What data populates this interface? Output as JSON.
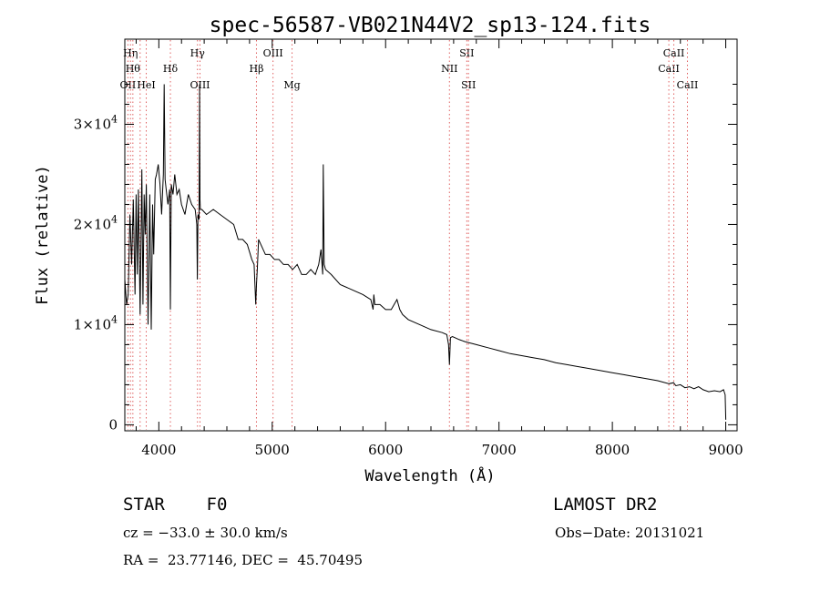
{
  "chart_data": {
    "type": "line",
    "title": "spec-56587-VB021N44V2_sp13-124.fits",
    "xlabel": "Wavelength (Å)",
    "ylabel": "Flux (relative)",
    "xlim": [
      3700,
      9100
    ],
    "ylim": [
      -600,
      38500
    ],
    "x_ticks": [
      {
        "value": 4000,
        "label": "4000"
      },
      {
        "value": 5000,
        "label": "5000"
      },
      {
        "value": 6000,
        "label": "6000"
      },
      {
        "value": 7000,
        "label": "7000"
      },
      {
        "value": 8000,
        "label": "8000"
      },
      {
        "value": 9000,
        "label": "9000"
      }
    ],
    "y_ticks": [
      {
        "value": 0,
        "label": "0",
        "exp": ""
      },
      {
        "value": 10000,
        "label": "1×10",
        "exp": "4"
      },
      {
        "value": 20000,
        "label": "2×10",
        "exp": "4"
      },
      {
        "value": 30000,
        "label": "3×10",
        "exp": "4"
      }
    ],
    "series": [
      {
        "color": "#000000",
        "x": [
          3700,
          3715,
          3730,
          3745,
          3760,
          3775,
          3790,
          3800,
          3810,
          3820,
          3835,
          3850,
          3860,
          3870,
          3880,
          3890,
          3905,
          3920,
          3933,
          3945,
          3955,
          3968,
          3980,
          3995,
          4010,
          4025,
          4040,
          4047,
          4055,
          4065,
          4080,
          4095,
          4102,
          4110,
          4125,
          4140,
          4160,
          4180,
          4200,
          4230,
          4260,
          4290,
          4320,
          4335,
          4340,
          4345,
          4355,
          4360,
          4363,
          4366,
          4380,
          4420,
          4480,
          4540,
          4600,
          4660,
          4700,
          4740,
          4780,
          4820,
          4840,
          4855,
          4861,
          4868,
          4880,
          4900,
          4940,
          4980,
          5020,
          5060,
          5100,
          5140,
          5180,
          5220,
          5260,
          5300,
          5340,
          5380,
          5410,
          5430,
          5445,
          5450,
          5458,
          5470,
          5520,
          5600,
          5700,
          5800,
          5870,
          5890,
          5896,
          5905,
          5950,
          6000,
          6050,
          6100,
          6125,
          6150,
          6200,
          6300,
          6400,
          6500,
          6540,
          6555,
          6563,
          6572,
          6590,
          6650,
          6700,
          6800,
          6900,
          7000,
          7100,
          7200,
          7300,
          7400,
          7500,
          7600,
          7700,
          7800,
          7900,
          8000,
          8100,
          8200,
          8300,
          8400,
          8500,
          8540,
          8560,
          8600,
          8640,
          8680,
          8720,
          8760,
          8800,
          8850,
          8900,
          8950,
          8980,
          8995,
          9000
        ],
        "y": [
          14500,
          12000,
          13000,
          21000,
          16000,
          22500,
          13000,
          23000,
          15000,
          23500,
          11000,
          25500,
          12000,
          23000,
          19000,
          24000,
          10000,
          23000,
          9500,
          22000,
          17000,
          24500,
          25000,
          26000,
          24000,
          21000,
          25000,
          34000,
          24500,
          23500,
          22000,
          23500,
          11500,
          24000,
          23000,
          25000,
          23000,
          23500,
          22000,
          21000,
          23000,
          22000,
          21500,
          20000,
          14500,
          21000,
          20500,
          34000,
          22500,
          21500,
          21500,
          21000,
          21500,
          21000,
          20500,
          20000,
          18500,
          18500,
          18000,
          16500,
          16000,
          12000,
          14000,
          15500,
          18500,
          18000,
          17000,
          17000,
          16500,
          16500,
          16000,
          16000,
          15500,
          16000,
          15000,
          15000,
          15500,
          15000,
          16000,
          17500,
          15000,
          26000,
          16000,
          15500,
          15000,
          14000,
          13500,
          13000,
          12500,
          11500,
          13000,
          12000,
          12000,
          11500,
          11500,
          12500,
          11500,
          11000,
          10500,
          10000,
          9500,
          9200,
          9000,
          8000,
          6000,
          8700,
          8800,
          8500,
          8300,
          8000,
          7700,
          7400,
          7100,
          6900,
          6700,
          6500,
          6200,
          6000,
          5800,
          5600,
          5400,
          5200,
          5000,
          4800,
          4600,
          4400,
          4100,
          4200,
          3900,
          4000,
          3700,
          3800,
          3600,
          3800,
          3500,
          3300,
          3400,
          3300,
          3500,
          3000,
          500
        ]
      }
    ],
    "line_markers": [
      {
        "wave": 3727,
        "label": "OII",
        "row": 3
      },
      {
        "wave": 3750,
        "label": "Hη",
        "row": 1
      },
      {
        "wave": 3771,
        "label": "Hθ",
        "row": 2
      },
      {
        "wave": 3835,
        "label": "",
        "row": 0
      },
      {
        "wave": 3889,
        "label": "HeI",
        "row": 3
      },
      {
        "wave": 4102,
        "label": "Hδ",
        "row": 2
      },
      {
        "wave": 4341,
        "label": "Hγ",
        "row": 1
      },
      {
        "wave": 4363,
        "label": "OIII",
        "row": 3
      },
      {
        "wave": 4861,
        "label": "Hβ",
        "row": 2
      },
      {
        "wave": 5007,
        "label": "OIII",
        "row": 1
      },
      {
        "wave": 5175,
        "label": "Mg",
        "row": 3
      },
      {
        "wave": 6563,
        "label": "NII",
        "row": 2
      },
      {
        "wave": 6716,
        "label": "SII",
        "row": 1
      },
      {
        "wave": 6731,
        "label": "SII",
        "row": 3
      },
      {
        "wave": 8498,
        "label": "CaII",
        "row": 2
      },
      {
        "wave": 8542,
        "label": "CaII",
        "row": 1
      },
      {
        "wave": 8662,
        "label": "CaII",
        "row": 3
      }
    ]
  },
  "info": {
    "class_text": "STAR    F0",
    "survey": "LAMOST DR2",
    "cz": "cz = −33.0 ± 30.0 km/s",
    "obs_date": "Obs−Date: 20131021",
    "coords": "RA =  23.77146, DEC =  45.70495"
  }
}
